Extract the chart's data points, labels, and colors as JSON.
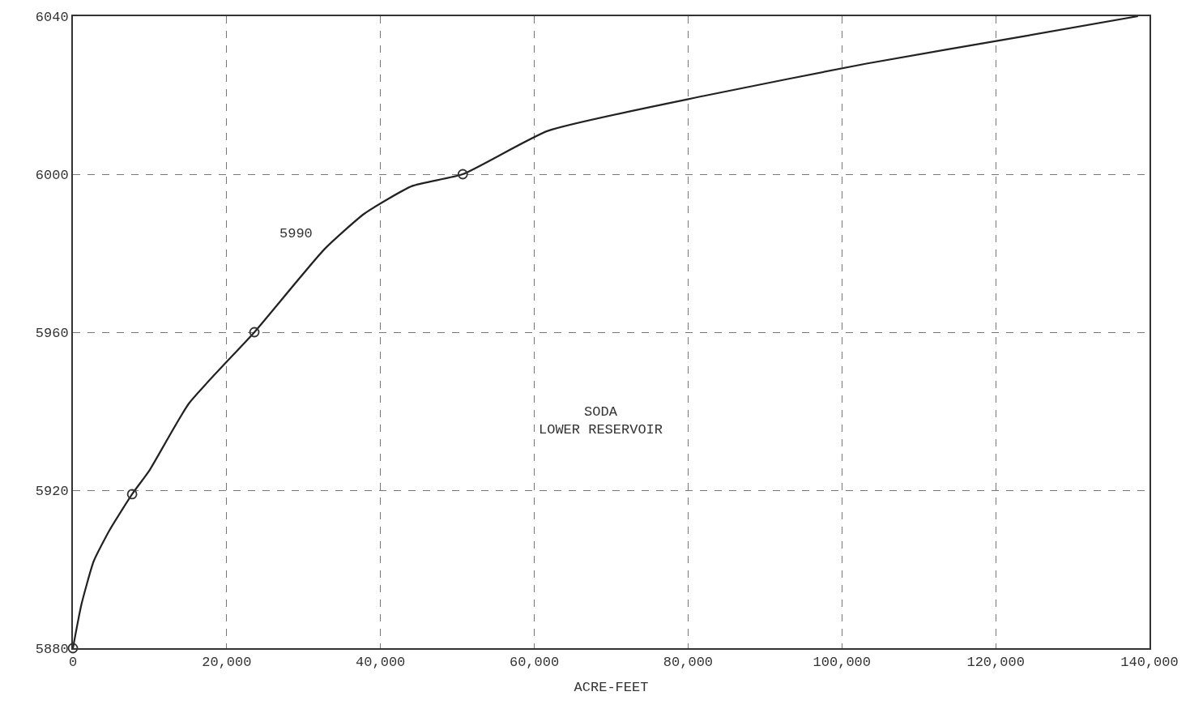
{
  "chart_data": {
    "type": "line",
    "xlabel": "ACRE-FEET",
    "x": [
      0,
      1100,
      2700,
      4800,
      7700,
      9950,
      15100,
      23600,
      32700,
      37900,
      44100,
      50700,
      61800,
      82500,
      103200,
      123900,
      138500
    ],
    "series": [
      {
        "color": "#222222",
        "marker": "none",
        "values": [
          5880,
          5891,
          5902,
          5910,
          5919,
          5925,
          5942,
          5960,
          5981,
          5990,
          5997,
          6000,
          6011,
          6020,
          6028,
          6035,
          6040
        ]
      },
      {
        "type": "scatter",
        "color": "#333333",
        "marker": "circle",
        "x": [
          0,
          7700,
          23600,
          50700
        ],
        "values": [
          5880,
          5919,
          5960,
          6000
        ]
      }
    ],
    "xlim": [
      0,
      140000
    ],
    "xticks": [
      {
        "value": 0,
        "label": "0"
      },
      {
        "value": 20000,
        "label": "20,000"
      },
      {
        "value": 40000,
        "label": "40,000"
      },
      {
        "value": 60000,
        "label": "60,000"
      },
      {
        "value": 80000,
        "label": "80,000"
      },
      {
        "value": 100000,
        "label": "100,000"
      },
      {
        "value": 120000,
        "label": "120,000"
      },
      {
        "value": 140000,
        "label": "140,000"
      }
    ],
    "ylim": [
      5880,
      6040
    ],
    "yticks": [
      5880,
      5920,
      5960,
      6000,
      6040
    ],
    "grid": true,
    "annotations": [
      "5990",
      "SODA\nLOWER RESERVOIR"
    ]
  }
}
